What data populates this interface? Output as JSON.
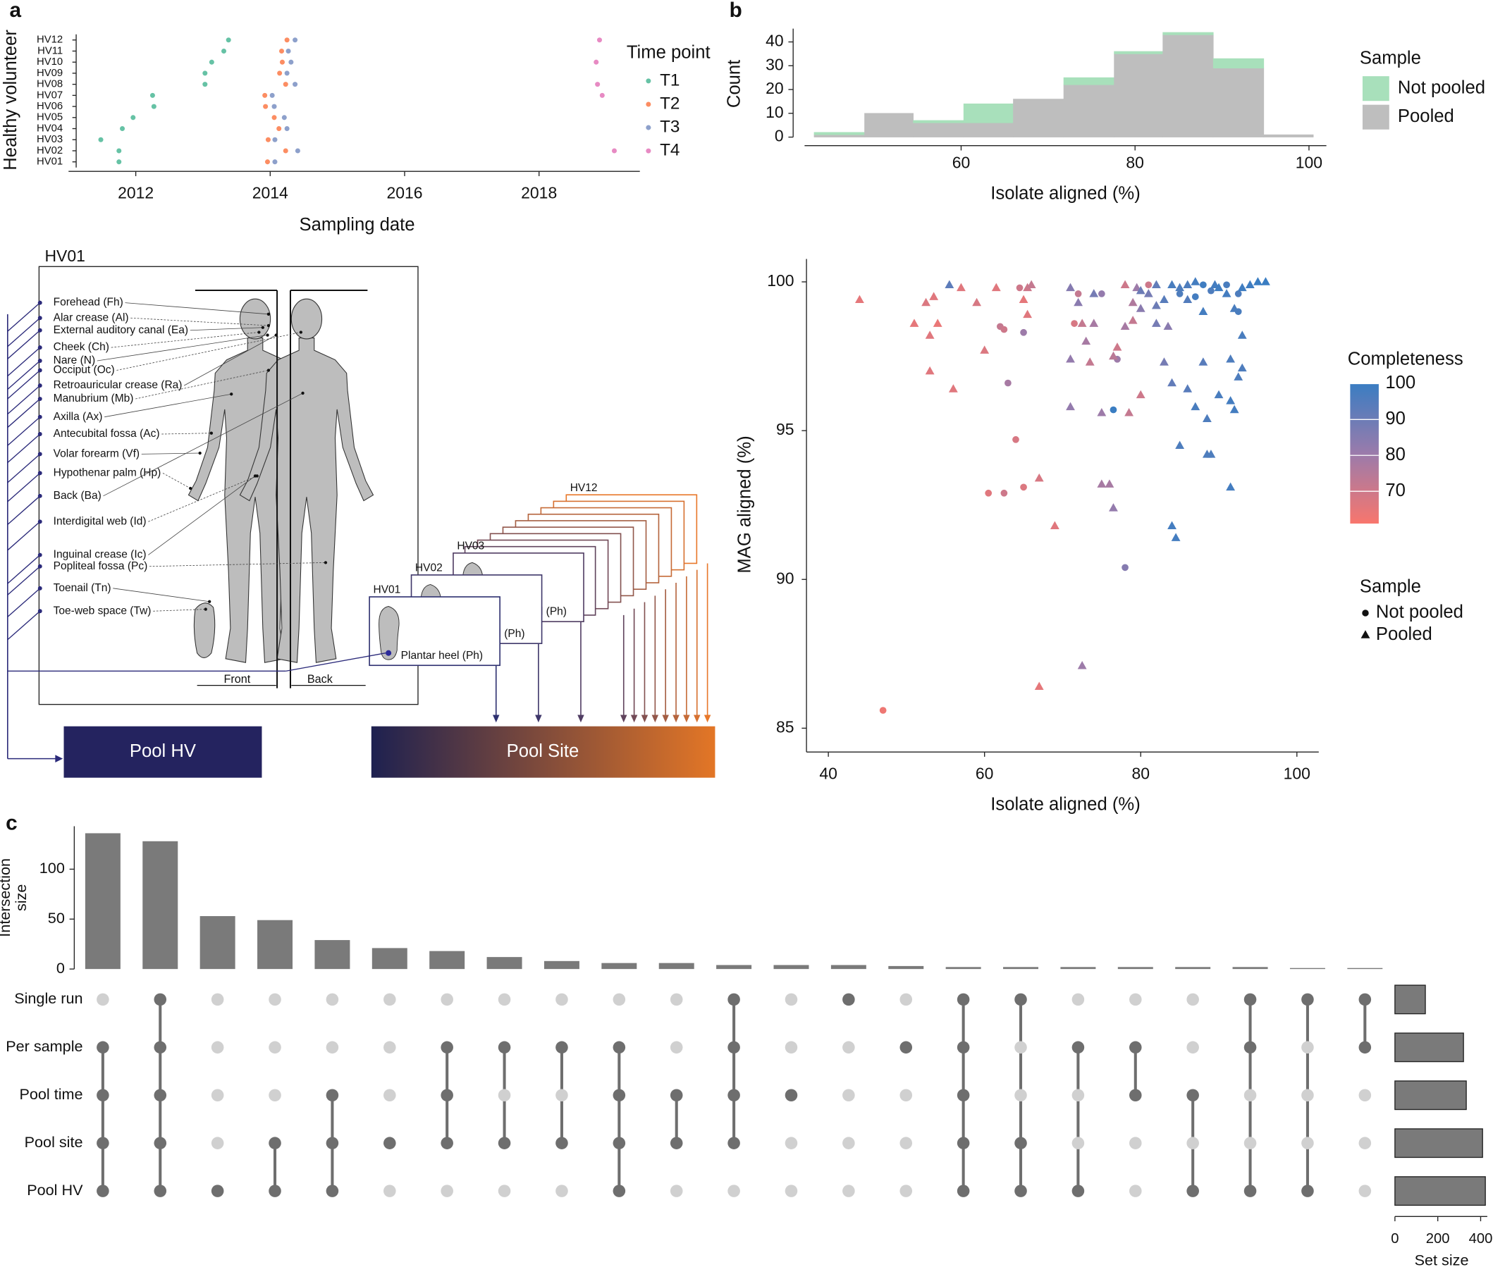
{
  "panel_labels": [
    "a",
    "b",
    "c"
  ],
  "chart_data": [
    {
      "type": "dot",
      "x_label": "Sampling date",
      "y_label": "Healthy volunteer",
      "categories": [
        "HV01",
        "HV02",
        "HV03",
        "HV04",
        "HV05",
        "HV06",
        "HV07",
        "HV08",
        "HV09",
        "HV10",
        "HV11",
        "HV12"
      ],
      "legend_title": "Time point",
      "series": [
        {
          "name": "T1",
          "color": "#66c2a5",
          "values": [
            2011.75,
            2011.75,
            2011.48,
            2011.8,
            2011.96,
            2012.27,
            2012.25,
            2013.03,
            2013.03,
            2013.13,
            2013.31,
            2013.38
          ]
        },
        {
          "name": "T2",
          "color": "#fc8d62",
          "values": [
            2013.96,
            2014.23,
            2013.97,
            2014.13,
            2014.06,
            2013.93,
            2013.92,
            2014.23,
            2014.14,
            2014.18,
            2014.17,
            2014.25
          ]
        },
        {
          "name": "T3",
          "color": "#8da0cb",
          "values": [
            2014.07,
            2014.41,
            2014.07,
            2014.25,
            2014.21,
            2014.06,
            2014.03,
            2014.37,
            2014.25,
            2014.31,
            2014.27,
            2014.37
          ]
        },
        {
          "name": "T4",
          "color": "#e78ac3",
          "values": [
            null,
            2019.12,
            null,
            null,
            null,
            null,
            2018.94,
            2018.87,
            null,
            2018.85,
            null,
            2018.9
          ]
        }
      ],
      "xlim": [
        2011.0,
        2019.5
      ],
      "xticks": [
        2012,
        2014,
        2016,
        2018
      ]
    },
    {
      "type": "histogram",
      "x_label": "Isolate aligned (%)",
      "y_label": "Count",
      "legend_title": "Sample",
      "bins": [
        43.1,
        48.9,
        54.5,
        60.3,
        66.0,
        71.8,
        77.6,
        83.2,
        89.0,
        94.8,
        100.5
      ],
      "series": [
        {
          "name": "Not pooled",
          "color": "#a8e0bb",
          "values": [
            1,
            0,
            1,
            8,
            0,
            3,
            1,
            1,
            4,
            0
          ]
        },
        {
          "name": "Pooled",
          "color": "#bebebe",
          "values": [
            1,
            10,
            6,
            6,
            16,
            22,
            35,
            43,
            29,
            1
          ]
        }
      ],
      "xlim": [
        42,
        102
      ],
      "ylim": [
        0,
        46
      ],
      "xticks": [
        60,
        80,
        100
      ],
      "yticks": [
        0,
        10,
        20,
        30,
        40
      ]
    },
    {
      "type": "scatter",
      "x_label": "Isolate aligned (%)",
      "y_label": "MAG aligned (%)",
      "xlim": [
        37.2,
        102.8
      ],
      "ylim": [
        84.2,
        100.77
      ],
      "xticks": [
        40,
        60,
        80,
        100
      ],
      "yticks": [
        85,
        90,
        95,
        100
      ],
      "color_title": "Completeness",
      "clim": [
        61,
        100
      ],
      "cticks": [
        70,
        80,
        90,
        100
      ],
      "colormap": [
        "#f8766d",
        "#9b7bab",
        "#3a7dc2"
      ],
      "legend_title": "Sample",
      "series": [
        {
          "name": "Not pooled",
          "marker": "circle",
          "x": [
            47,
            60.5,
            62.5,
            64,
            65,
            62,
            62.5,
            63,
            65,
            64.5,
            71.5,
            75,
            77,
            76.5,
            78,
            81,
            85,
            87,
            88,
            92.5,
            92.5,
            89,
            91,
            72
          ],
          "values": [
            85.6,
            92.9,
            92.9,
            94.7,
            93.1,
            98.5,
            98.4,
            96.6,
            98.3,
            99.8,
            98.6,
            99.6,
            97.4,
            95.7,
            90.4,
            99.9,
            99.6,
            99.5,
            99.9,
            99.0,
            99.6,
            99.7,
            99.9,
            99.6
          ],
          "completeness": [
            63,
            66,
            70,
            68,
            67,
            72,
            70,
            78,
            80,
            70,
            68,
            82,
            80,
            100,
            85,
            70,
            96,
            98,
            99,
            97,
            96,
            96,
            97,
            72
          ]
        },
        {
          "name": "Pooled",
          "marker": "triangle",
          "x": [
            44,
            51,
            52.5,
            53.5,
            53,
            53,
            54,
            55.5,
            56,
            57,
            59,
            60,
            61.5,
            65,
            65.5,
            65.5,
            66,
            67,
            67,
            69,
            71,
            71,
            71,
            72.5,
            72,
            72.5,
            73,
            73.5,
            74,
            74,
            75,
            75,
            76,
            76.5,
            76.5,
            77,
            78,
            78,
            78.5,
            79,
            79,
            79.5,
            80,
            80,
            81,
            82,
            82,
            83,
            83,
            83.5,
            84,
            84,
            84.5,
            85,
            85,
            86,
            86,
            87,
            87,
            88,
            88,
            88.5,
            88.5,
            89,
            89.5,
            90,
            90,
            91,
            91.5,
            91.5,
            91.5,
            92,
            92.5,
            93,
            93,
            92,
            93,
            94,
            95,
            96,
            84,
            86,
            80,
            82
          ],
          "values": [
            99.4,
            98.6,
            99.3,
            99.5,
            98.2,
            97.0,
            98.6,
            99.9,
            96.4,
            99.8,
            99.3,
            97.7,
            99.8,
            99.4,
            98.9,
            99.8,
            99.9,
            93.4,
            86.4,
            91.8,
            99.8,
            95.8,
            97.4,
            87.1,
            99.3,
            98.6,
            98.0,
            97.3,
            99.6,
            98.6,
            93.2,
            95.6,
            93.2,
            92.4,
            97.5,
            97.8,
            98.5,
            99.9,
            95.6,
            99.3,
            98.7,
            99.8,
            99.1,
            96.2,
            99.6,
            99.2,
            99.9,
            99.4,
            97.3,
            98.5,
            96.6,
            91.8,
            91.4,
            99.8,
            94.5,
            99.4,
            96.4,
            100,
            95.8,
            99.0,
            97.3,
            95.4,
            94.2,
            94.2,
            99.9,
            99.8,
            96.2,
            99.6,
            93.1,
            97.4,
            96.0,
            99.1,
            96.8,
            97.1,
            98.2,
            95.7,
            99.8,
            99.9,
            100,
            100,
            99.9,
            99.9,
            99.7,
            98.6
          ],
          "completeness": [
            65,
            65,
            67,
            66,
            66,
            66,
            64,
            93,
            66,
            66,
            68,
            67,
            66,
            65,
            66,
            70,
            72,
            68,
            65,
            66,
            85,
            82,
            82,
            80,
            84,
            72,
            78,
            72,
            88,
            78,
            78,
            80,
            78,
            82,
            74,
            70,
            78,
            70,
            72,
            76,
            72,
            80,
            84,
            70,
            88,
            90,
            92,
            94,
            88,
            84,
            92,
            98,
            98,
            96,
            96,
            95,
            94,
            98,
            97,
            98,
            94,
            96,
            96,
            96,
            98,
            99,
            97,
            98,
            98,
            96,
            98,
            97,
            96,
            96,
            97,
            98,
            99,
            99,
            100,
            100,
            97,
            96,
            90,
            88
          ]
        }
      ]
    },
    {
      "type": "upset",
      "y_label": "Intersection size",
      "color": "#7a7a7a",
      "values": [
        136,
        128,
        53,
        49,
        29,
        21,
        18,
        12,
        8,
        6,
        6,
        4,
        4,
        4,
        3,
        2,
        2,
        2,
        2,
        2,
        2,
        1,
        1
      ],
      "set_names": [
        "Single run",
        "Per sample",
        "Pool time",
        "Pool site",
        "Pool HV"
      ],
      "sets": [
        [
          1,
          2,
          3,
          4
        ],
        [
          0,
          1,
          2,
          3,
          4
        ],
        [
          4
        ],
        [
          3,
          4
        ],
        [
          2,
          3,
          4
        ],
        [
          3
        ],
        [
          1,
          2,
          3
        ],
        [
          1,
          3
        ],
        [
          1,
          3
        ],
        [
          1,
          2,
          3,
          4
        ],
        [
          2,
          3
        ],
        [
          0,
          1,
          2,
          3
        ],
        [
          2
        ],
        [
          0
        ],
        [
          1
        ],
        [
          0,
          1,
          2,
          3,
          4
        ],
        [
          0,
          3,
          4
        ],
        [
          1,
          4
        ],
        [
          1,
          2
        ],
        [
          2,
          4
        ],
        [
          0,
          1,
          4
        ],
        [
          0,
          4
        ],
        [
          0,
          1
        ]
      ],
      "set_sizes": [
        142,
        320,
        333,
        409,
        422
      ],
      "ylim": [
        0,
        143
      ],
      "yticks": [
        0,
        50,
        100
      ],
      "set_size_label": "Set size",
      "set_size_lim": [
        0,
        431
      ],
      "set_size_ticks": [
        0,
        200,
        400
      ]
    }
  ],
  "diagram": {
    "title": "HV01",
    "sites": [
      "Forehead (Fh)",
      "Alar crease (Al)",
      "External auditory canal (Ea)",
      "Cheek (Ch)",
      "Nare (N)",
      "Occiput (Oc)",
      "Retroauricular crease (Ra)",
      "Manubrium (Mb)",
      "Axilla (Ax)",
      "Antecubital fossa (Ac)",
      "Volar forearm (Vf)",
      "Hypothenar palm (Hp)",
      "Back (Ba)",
      "Interdigital web (Id)",
      "Inguinal crease (Ic)",
      "Popliteal fossa (Pc)",
      "Toenail (Tn)",
      "Toe-web space (Tw)"
    ],
    "views": [
      "Front",
      "Back"
    ],
    "feet": [
      "HV01",
      "HV02",
      "HV03",
      "HV12"
    ],
    "foot_site": "Plantar heel (Ph)",
    "pools": [
      "Pool HV",
      "Pool Site"
    ]
  }
}
